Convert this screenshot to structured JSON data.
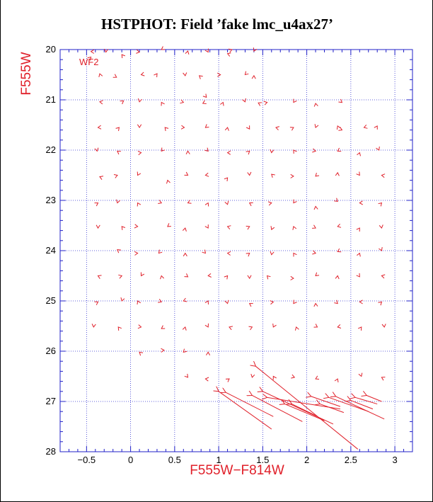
{
  "chart_data": {
    "type": "vector-field",
    "title": "HSTPHOT: Field ’fake lmc_u4ax27’",
    "xlabel": "F555W−F814W",
    "ylabel": "F555W",
    "panel_label": "WF2",
    "xlim": [
      -0.8,
      3.2
    ],
    "ylim": [
      28,
      20
    ],
    "x_ticks": [
      -0.5,
      0,
      0.5,
      1,
      1.5,
      2,
      2.5,
      3
    ],
    "x_tick_labels": [
      "−0.5",
      "0",
      "0.5",
      "1",
      "1.5",
      "2",
      "2.5",
      "3"
    ],
    "y_ticks": [
      20,
      21,
      22,
      23,
      24,
      25,
      26,
      27,
      28
    ],
    "y_tick_labels": [
      "20",
      "21",
      "22",
      "23",
      "24",
      "25",
      "26",
      "27",
      "28"
    ],
    "grid": true,
    "colors": {
      "axis": "#2020c8",
      "grid": "#3030d0",
      "vectors": "#e0202a"
    },
    "long_vectors": [
      {
        "x": 1.0,
        "y": 26.8,
        "x_end": 1.6,
        "y_end": 27.55
      },
      {
        "x": 1.08,
        "y": 26.82,
        "x_end": 1.62,
        "y_end": 27.3
      },
      {
        "x": 1.38,
        "y": 26.88,
        "x_end": 1.95,
        "y_end": 27.4
      },
      {
        "x": 1.5,
        "y": 26.8,
        "x_end": 2.3,
        "y_end": 27.45
      },
      {
        "x": 1.42,
        "y": 26.3,
        "x_end": 2.58,
        "y_end": 27.95
      },
      {
        "x": 1.55,
        "y": 26.92,
        "x_end": 2.38,
        "y_end": 27.15
      },
      {
        "x": 1.75,
        "y": 27.05,
        "x_end": 2.2,
        "y_end": 27.38
      },
      {
        "x": 1.83,
        "y": 27.05,
        "x_end": 2.1,
        "y_end": 27.28
      },
      {
        "x": 2.05,
        "y": 26.9,
        "x_end": 2.38,
        "y_end": 27.1
      },
      {
        "x": 2.15,
        "y": 27.05,
        "x_end": 2.42,
        "y_end": 27.22
      },
      {
        "x": 2.25,
        "y": 26.92,
        "x_end": 2.7,
        "y_end": 27.2
      },
      {
        "x": 2.33,
        "y": 26.9,
        "x_end": 2.88,
        "y_end": 27.35
      },
      {
        "x": 2.5,
        "y": 26.98,
        "x_end": 2.75,
        "y_end": 27.15
      },
      {
        "x": 2.55,
        "y": 26.92,
        "x_end": 2.8,
        "y_end": 27.05
      },
      {
        "x": 2.68,
        "y": 26.88,
        "x_end": 2.85,
        "y_end": 27.0
      }
    ],
    "markers": [
      {
        "x": -0.45,
        "y": 20.04
      },
      {
        "x": -0.45,
        "y": 20.15
      },
      {
        "x": -0.28,
        "y": 20.05
      },
      {
        "x": -0.1,
        "y": 20.1
      },
      {
        "x": 0.1,
        "y": 20.05
      },
      {
        "x": 0.35,
        "y": 20.0
      },
      {
        "x": 0.65,
        "y": 20.03
      },
      {
        "x": 0.88,
        "y": 20.05
      },
      {
        "x": 1.1,
        "y": 20.08
      },
      {
        "x": 1.15,
        "y": 20.0
      },
      {
        "x": 1.4,
        "y": 20.03
      },
      {
        "x": -0.35,
        "y": 20.48
      },
      {
        "x": -0.16,
        "y": 20.55
      },
      {
        "x": 0.12,
        "y": 20.5
      },
      {
        "x": 0.3,
        "y": 20.48
      },
      {
        "x": 0.62,
        "y": 20.52
      },
      {
        "x": 0.78,
        "y": 20.52
      },
      {
        "x": 1.02,
        "y": 20.5
      },
      {
        "x": 1.3,
        "y": 20.5
      },
      {
        "x": 1.4,
        "y": 20.52
      },
      {
        "x": 0.86,
        "y": 20.95
      },
      {
        "x": -0.35,
        "y": 21.04
      },
      {
        "x": -0.08,
        "y": 21.02
      },
      {
        "x": 0.1,
        "y": 21.04
      },
      {
        "x": 0.35,
        "y": 21.05
      },
      {
        "x": 0.6,
        "y": 21.05
      },
      {
        "x": 0.82,
        "y": 21.07
      },
      {
        "x": 1.05,
        "y": 21.05
      },
      {
        "x": 1.3,
        "y": 21.04
      },
      {
        "x": 1.45,
        "y": 21.06
      },
      {
        "x": 1.55,
        "y": 21.05
      },
      {
        "x": 1.85,
        "y": 21.05
      },
      {
        "x": 2.1,
        "y": 21.07
      },
      {
        "x": 2.4,
        "y": 21.05
      },
      {
        "x": -0.37,
        "y": 21.55
      },
      {
        "x": -0.13,
        "y": 21.55
      },
      {
        "x": 0.1,
        "y": 21.55
      },
      {
        "x": 0.39,
        "y": 21.55
      },
      {
        "x": 0.61,
        "y": 21.55
      },
      {
        "x": 0.85,
        "y": 21.55
      },
      {
        "x": 1.1,
        "y": 21.55
      },
      {
        "x": 1.35,
        "y": 21.58
      },
      {
        "x": 1.65,
        "y": 21.55
      },
      {
        "x": 1.85,
        "y": 21.55
      },
      {
        "x": 2.1,
        "y": 21.55
      },
      {
        "x": 2.35,
        "y": 21.52
      },
      {
        "x": 2.4,
        "y": 21.6
      },
      {
        "x": 2.65,
        "y": 21.55
      },
      {
        "x": 2.8,
        "y": 21.52
      },
      {
        "x": -0.38,
        "y": 22.02
      },
      {
        "x": -0.15,
        "y": 22.02
      },
      {
        "x": 0.12,
        "y": 22.05
      },
      {
        "x": 0.35,
        "y": 22.02
      },
      {
        "x": 0.65,
        "y": 22.02
      },
      {
        "x": 0.88,
        "y": 22.02
      },
      {
        "x": 1.1,
        "y": 22.05
      },
      {
        "x": 1.35,
        "y": 22.02
      },
      {
        "x": 1.6,
        "y": 22.05
      },
      {
        "x": 1.85,
        "y": 22.0
      },
      {
        "x": 2.1,
        "y": 22.02
      },
      {
        "x": 2.35,
        "y": 22.02
      },
      {
        "x": 2.6,
        "y": 22.05
      },
      {
        "x": 2.82,
        "y": 22.0
      },
      {
        "x": -0.35,
        "y": 22.53
      },
      {
        "x": -0.15,
        "y": 22.5
      },
      {
        "x": 0.08,
        "y": 22.5
      },
      {
        "x": 0.42,
        "y": 22.6
      },
      {
        "x": 0.65,
        "y": 22.5
      },
      {
        "x": 0.85,
        "y": 22.5
      },
      {
        "x": 1.1,
        "y": 22.55
      },
      {
        "x": 1.35,
        "y": 22.5
      },
      {
        "x": 1.6,
        "y": 22.48
      },
      {
        "x": 1.85,
        "y": 22.52
      },
      {
        "x": 2.1,
        "y": 22.52
      },
      {
        "x": 2.35,
        "y": 22.45
      },
      {
        "x": 2.6,
        "y": 22.5
      },
      {
        "x": 2.85,
        "y": 22.5
      },
      {
        "x": -0.37,
        "y": 23.05
      },
      {
        "x": -0.15,
        "y": 23.05
      },
      {
        "x": 0.08,
        "y": 23.05
      },
      {
        "x": 0.35,
        "y": 23.05
      },
      {
        "x": 0.65,
        "y": 23.05
      },
      {
        "x": 0.88,
        "y": 23.05
      },
      {
        "x": 1.1,
        "y": 23.08
      },
      {
        "x": 1.35,
        "y": 23.05
      },
      {
        "x": 1.6,
        "y": 23.05
      },
      {
        "x": 1.85,
        "y": 23.05
      },
      {
        "x": 2.1,
        "y": 23.12
      },
      {
        "x": 2.35,
        "y": 23.02
      },
      {
        "x": 2.6,
        "y": 23.05
      },
      {
        "x": 2.85,
        "y": 23.05
      },
      {
        "x": -0.37,
        "y": 23.55
      },
      {
        "x": -0.1,
        "y": 23.52
      },
      {
        "x": 0.08,
        "y": 23.52
      },
      {
        "x": 0.42,
        "y": 23.52
      },
      {
        "x": 0.62,
        "y": 23.55
      },
      {
        "x": 0.88,
        "y": 23.55
      },
      {
        "x": 1.1,
        "y": 23.52
      },
      {
        "x": 1.35,
        "y": 23.52
      },
      {
        "x": 1.6,
        "y": 23.58
      },
      {
        "x": 1.85,
        "y": 23.52
      },
      {
        "x": 2.1,
        "y": 23.55
      },
      {
        "x": 2.35,
        "y": 23.52
      },
      {
        "x": 2.6,
        "y": 23.55
      },
      {
        "x": 2.85,
        "y": 23.55
      },
      {
        "x": -0.15,
        "y": 23.98
      },
      {
        "x": 0.08,
        "y": 24.05
      },
      {
        "x": 0.32,
        "y": 24.05
      },
      {
        "x": 0.62,
        "y": 24.05
      },
      {
        "x": 0.85,
        "y": 24.05
      },
      {
        "x": 1.1,
        "y": 24.05
      },
      {
        "x": 1.35,
        "y": 24.05
      },
      {
        "x": 1.6,
        "y": 24.08
      },
      {
        "x": 1.85,
        "y": 24.05
      },
      {
        "x": 2.1,
        "y": 24.05
      },
      {
        "x": 2.35,
        "y": 24.02
      },
      {
        "x": 2.6,
        "y": 24.05
      },
      {
        "x": 2.85,
        "y": 24.0
      },
      {
        "x": -0.37,
        "y": 24.5
      },
      {
        "x": -0.1,
        "y": 24.5
      },
      {
        "x": 0.12,
        "y": 24.5
      },
      {
        "x": 0.35,
        "y": 24.5
      },
      {
        "x": 0.65,
        "y": 24.52
      },
      {
        "x": 0.88,
        "y": 24.5
      },
      {
        "x": 1.1,
        "y": 24.5
      },
      {
        "x": 1.35,
        "y": 24.55
      },
      {
        "x": 1.55,
        "y": 24.5
      },
      {
        "x": 1.85,
        "y": 24.55
      },
      {
        "x": 2.1,
        "y": 24.5
      },
      {
        "x": 2.35,
        "y": 24.5
      },
      {
        "x": 2.6,
        "y": 24.52
      },
      {
        "x": 2.85,
        "y": 24.5
      },
      {
        "x": -0.37,
        "y": 25.02
      },
      {
        "x": -0.1,
        "y": 25.0
      },
      {
        "x": 0.08,
        "y": 25.0
      },
      {
        "x": 0.35,
        "y": 25.02
      },
      {
        "x": 0.6,
        "y": 25.0
      },
      {
        "x": 0.88,
        "y": 25.0
      },
      {
        "x": 1.1,
        "y": 25.05
      },
      {
        "x": 1.35,
        "y": 25.05
      },
      {
        "x": 1.62,
        "y": 25.02
      },
      {
        "x": 1.85,
        "y": 25.05
      },
      {
        "x": 2.1,
        "y": 25.05
      },
      {
        "x": 2.35,
        "y": 25.05
      },
      {
        "x": 2.6,
        "y": 25.02
      },
      {
        "x": 2.85,
        "y": 25.02
      },
      {
        "x": -0.42,
        "y": 25.52
      },
      {
        "x": -0.14,
        "y": 25.52
      },
      {
        "x": 0.12,
        "y": 25.52
      },
      {
        "x": 0.35,
        "y": 25.55
      },
      {
        "x": 0.62,
        "y": 25.52
      },
      {
        "x": 0.88,
        "y": 25.52
      },
      {
        "x": 1.12,
        "y": 25.52
      },
      {
        "x": 1.38,
        "y": 25.52
      },
      {
        "x": 1.62,
        "y": 25.52
      },
      {
        "x": 1.88,
        "y": 25.52
      },
      {
        "x": 2.12,
        "y": 25.52
      },
      {
        "x": 2.35,
        "y": 25.52
      },
      {
        "x": 2.62,
        "y": 25.52
      },
      {
        "x": 2.88,
        "y": 25.52
      },
      {
        "x": 0.1,
        "y": 26.02
      },
      {
        "x": 0.38,
        "y": 25.98
      },
      {
        "x": 0.6,
        "y": 26.02
      },
      {
        "x": 0.88,
        "y": 26.02
      },
      {
        "x": 0.65,
        "y": 26.52
      },
      {
        "x": 0.85,
        "y": 26.55
      },
      {
        "x": 1.12,
        "y": 26.55
      },
      {
        "x": 1.38,
        "y": 26.52
      },
      {
        "x": 1.62,
        "y": 26.5
      },
      {
        "x": 1.86,
        "y": 26.52
      },
      {
        "x": 2.1,
        "y": 26.55
      },
      {
        "x": 2.35,
        "y": 26.55
      },
      {
        "x": 2.62,
        "y": 26.5
      },
      {
        "x": 2.85,
        "y": 26.52
      }
    ]
  }
}
